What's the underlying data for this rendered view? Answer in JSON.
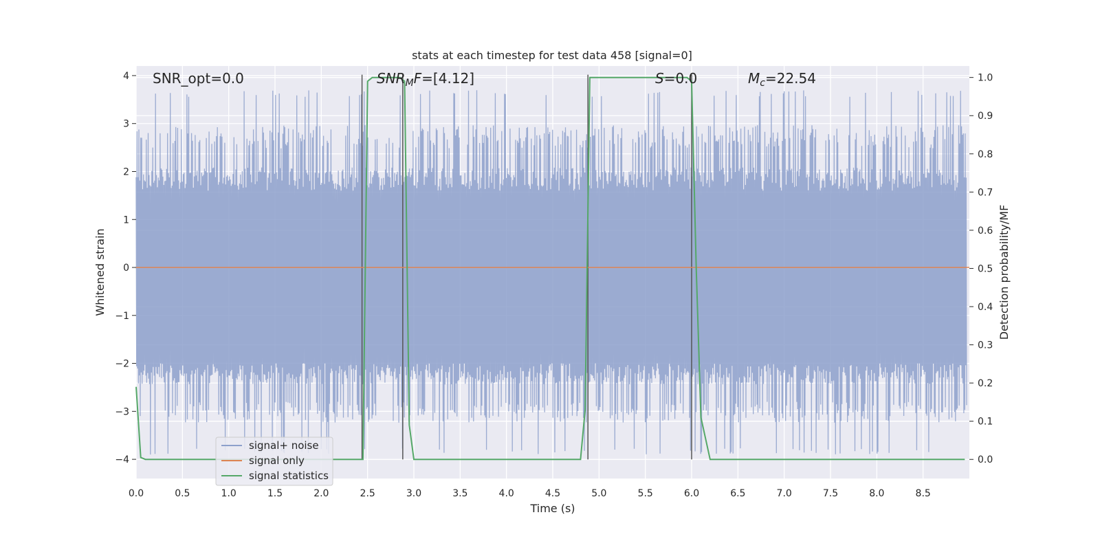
{
  "chart_data": {
    "type": "line",
    "title": "stats at each timestep for test data 458 [signal=0]",
    "xlabel": "Time (s)",
    "ylabel": "Whitened strain",
    "ylabel_right": "Detection probability/MF",
    "xlim": [
      0.0,
      9.0
    ],
    "ylim": [
      -4.4,
      4.2
    ],
    "ylim_right": [
      -0.05,
      1.03
    ],
    "x_ticks": [
      "0.0",
      "0.5",
      "1.0",
      "1.5",
      "2.0",
      "2.5",
      "3.0",
      "3.5",
      "4.0",
      "4.5",
      "5.0",
      "5.5",
      "6.0",
      "6.5",
      "7.0",
      "7.5",
      "8.0",
      "8.5"
    ],
    "y_ticks": [
      "4",
      "3",
      "2",
      "1",
      "0",
      "−1",
      "−2",
      "−3",
      "−4"
    ],
    "y_right_ticks": [
      "1.0",
      "0.9",
      "0.8",
      "0.7",
      "0.6",
      "0.5",
      "0.4",
      "0.3",
      "0.2",
      "0.1",
      "0.0"
    ],
    "grid": true,
    "legend_position": "lower-left",
    "annotations": {
      "snr_opt": "SNR_opt=0.0",
      "snr_mf_label": "SNR",
      "snr_mf_sub": "M",
      "snr_mf_tail": "F",
      "snr_mf_value": "=[4.12]",
      "s_label": "S",
      "s_value": "=0.0",
      "mc_label": "M",
      "mc_sub": "c",
      "mc_value": "=22.54"
    },
    "series": [
      {
        "name": "signal+ noise",
        "color": "#8da0cb",
        "description_values": "whitened noise, roughly between -3.9 and 3.7",
        "envelope": {
          "core_low": -2.0,
          "core_high": 1.6,
          "peak_max": 3.7,
          "trough_min": -3.9
        }
      },
      {
        "name": "signal only",
        "color": "#dd8452",
        "x": [
          0.0,
          9.0
        ],
        "y": [
          0.0,
          0.0
        ]
      },
      {
        "name": "signal statistics",
        "color": "#55a868",
        "x": [
          0.0,
          0.05,
          0.1,
          2.4,
          2.45,
          2.5,
          2.55,
          2.6,
          2.85,
          2.9,
          2.95,
          3.0,
          4.8,
          4.85,
          4.9,
          4.95,
          5.0,
          5.95,
          6.0,
          6.05,
          6.1,
          6.2,
          8.95
        ],
        "y": [
          0.19,
          0.005,
          0.0,
          0.0,
          0.0,
          0.99,
          1.0,
          1.0,
          1.0,
          0.99,
          0.09,
          0.0,
          0.0,
          0.13,
          1.0,
          1.0,
          1.0,
          1.0,
          0.99,
          0.5,
          0.11,
          0.0,
          0.0
        ]
      }
    ],
    "vertical_markers_x": [
      2.44,
      2.88,
      4.88,
      6.0
    ],
    "vertical_marker_color": "#555555"
  }
}
